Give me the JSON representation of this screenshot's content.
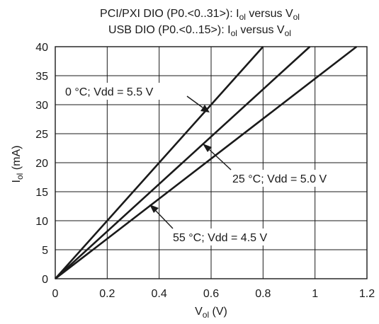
{
  "chart_data": {
    "type": "line",
    "title_line1": {
      "pre": "PCI/PXI DIO (P0.<0..31>): I",
      "sub1": "ol",
      "mid": " versus V",
      "sub2": "ol"
    },
    "title_line2": {
      "pre": "USB DIO (P0.<0..15>): I",
      "sub1": "ol",
      "mid": " versus V",
      "sub2": "ol"
    },
    "xlabel": {
      "pre": "V",
      "sub": "ol",
      "post": " (V)"
    },
    "ylabel": {
      "pre": "I",
      "sub": "ol",
      "post": " (mA)"
    },
    "xlim": [
      0,
      1.2
    ],
    "ylim": [
      0,
      40
    ],
    "x_ticks": [
      0,
      0.2,
      0.4,
      0.6,
      0.8,
      1,
      1.2
    ],
    "x_tick_labels": [
      "0",
      "0.2",
      "0.4",
      "0.6",
      "0.8",
      "1",
      "1.2"
    ],
    "y_ticks": [
      0,
      5,
      10,
      15,
      20,
      25,
      30,
      35,
      40
    ],
    "y_tick_labels": [
      "0",
      "5",
      "10",
      "15",
      "20",
      "25",
      "30",
      "35",
      "40"
    ],
    "grid": true,
    "series": [
      {
        "name": "0 °C; Vdd = 5.5 V",
        "x": [
          0,
          0.8
        ],
        "y": [
          0,
          40
        ]
      },
      {
        "name": "25 °C; Vdd = 5.0 V",
        "x": [
          0,
          0.98
        ],
        "y": [
          0,
          40
        ]
      },
      {
        "name": "55 °C; Vdd = 4.5 V",
        "x": [
          0,
          1.16
        ],
        "y": [
          0,
          40
        ]
      }
    ],
    "annotations": [
      {
        "text": "0 °C; Vdd = 5.5 V"
      },
      {
        "text": "25 °C; Vdd = 5.0 V"
      },
      {
        "text": "55 °C; Vdd = 4.5 V"
      }
    ]
  }
}
